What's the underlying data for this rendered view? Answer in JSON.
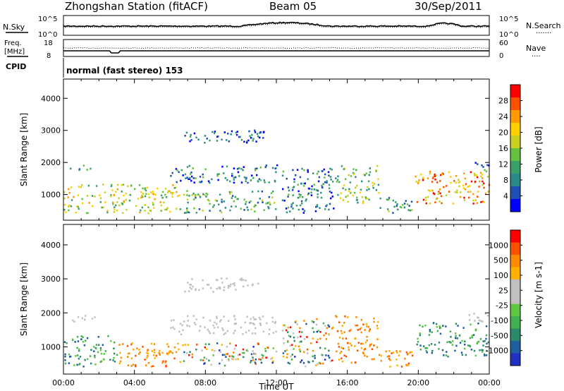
{
  "header": {
    "station": "Zhongshan Station (fitACF)",
    "beam": "Beam 05",
    "date": "30/Sep/2011"
  },
  "noise_panel": {
    "left_label": "N.Sky",
    "right_label": "N.Search",
    "left_ticks": [
      "10^5",
      "10^0"
    ],
    "right_ticks": [
      "10^5",
      "10^0"
    ],
    "legend_dots": "......."
  },
  "freq_panel": {
    "left_label_1": "Freq.",
    "left_label_2": "[MHz]",
    "left_ticks": [
      "18",
      "8"
    ],
    "right_label": "Nave",
    "right_ticks": [
      "60",
      "0"
    ],
    "legend_dots": "...."
  },
  "cpid": {
    "label": "CPID",
    "mode": "normal (fast stereo) 153"
  },
  "chart_data": [
    {
      "type": "heatmap",
      "name": "power",
      "ylabel": "Slant Range [km]",
      "yticks": [
        "4000",
        "3000",
        "2000",
        "1000"
      ],
      "ytick_values": [
        4000,
        3000,
        2000,
        1000
      ],
      "ylim": [
        200,
        4600
      ],
      "xlim": [
        0,
        24
      ],
      "colorbar_label": "Power [dB]",
      "colorbar_ticks": [
        "28",
        "24",
        "20",
        "16",
        "12",
        "8",
        "4"
      ],
      "colorbar_colors": [
        "#0000ff",
        "#1f4fb0",
        "#2a8a8a",
        "#3aa06a",
        "#66c040",
        "#c8d020",
        "#ffd000",
        "#ff9a00",
        "#ff5000",
        "#ff0000"
      ],
      "echo_regions": [
        {
          "t0": 0.0,
          "t1": 6.5,
          "r0": 400,
          "r1": 1300,
          "level": 0.55
        },
        {
          "t0": 0.3,
          "t1": 1.6,
          "r0": 1700,
          "r1": 1900,
          "level": 0.25
        },
        {
          "t0": 6.0,
          "t1": 12.0,
          "r0": 1350,
          "r1": 1900,
          "level": 0.18
        },
        {
          "t0": 6.8,
          "t1": 11.3,
          "r0": 2600,
          "r1": 3000,
          "level": 0.12
        },
        {
          "t0": 6.5,
          "t1": 12.0,
          "r0": 400,
          "r1": 1100,
          "level": 0.35
        },
        {
          "t0": 12.3,
          "t1": 15.2,
          "r0": 400,
          "r1": 1800,
          "level": 0.2
        },
        {
          "t0": 15.3,
          "t1": 17.8,
          "r0": 700,
          "r1": 1900,
          "level": 0.45
        },
        {
          "t0": 17.8,
          "t1": 19.7,
          "r0": 400,
          "r1": 900,
          "level": 0.3
        },
        {
          "t0": 19.8,
          "t1": 24.0,
          "r0": 700,
          "r1": 1700,
          "level": 0.75
        },
        {
          "t0": 22.8,
          "t1": 24.0,
          "r0": 1700,
          "r1": 2000,
          "level": 0.2
        }
      ]
    },
    {
      "type": "heatmap",
      "name": "velocity",
      "ylabel": "Slant Range [km]",
      "xlabel": "Time UT",
      "yticks": [
        "4000",
        "3000",
        "2000",
        "1000"
      ],
      "ytick_values": [
        4000,
        3000,
        2000,
        1000
      ],
      "ylim": [
        200,
        4600
      ],
      "xlim": [
        0,
        24
      ],
      "xticks": [
        "00:00",
        "04:00",
        "08:00",
        "12:00",
        "16:00",
        "20:00",
        "00:00"
      ],
      "xtick_values": [
        0,
        4,
        8,
        12,
        16,
        20,
        24
      ],
      "colorbar_label": "Velocity [m s-1]",
      "colorbar_ticks": [
        "1000",
        "500",
        "100",
        "25",
        "-25",
        "-100",
        "-500",
        "-1000"
      ],
      "colorbar_colors": [
        "#2030c0",
        "#1f5fa0",
        "#2a8a6a",
        "#40b050",
        "#60c840",
        "#c0c0c0",
        "#c0c0c0",
        "#ffb000",
        "#ff8a00",
        "#ff5000",
        "#ff0000"
      ],
      "echo_regions": [
        {
          "t0": 0.0,
          "t1": 3.0,
          "r0": 400,
          "r1": 1300,
          "level": "toward"
        },
        {
          "t0": 3.0,
          "t1": 6.5,
          "r0": 400,
          "r1": 1100,
          "level": "away"
        },
        {
          "t0": 0.3,
          "t1": 2.0,
          "r0": 1700,
          "r1": 1900,
          "level": "zero"
        },
        {
          "t0": 6.0,
          "t1": 12.0,
          "r0": 1350,
          "r1": 1900,
          "level": "zero"
        },
        {
          "t0": 6.8,
          "t1": 11.3,
          "r0": 2600,
          "r1": 3000,
          "level": "zero"
        },
        {
          "t0": 6.5,
          "t1": 12.0,
          "r0": 400,
          "r1": 1100,
          "level": "mixed"
        },
        {
          "t0": 12.3,
          "t1": 15.2,
          "r0": 400,
          "r1": 1800,
          "level": "mixed"
        },
        {
          "t0": 15.3,
          "t1": 17.8,
          "r0": 500,
          "r1": 1900,
          "level": "away"
        },
        {
          "t0": 17.8,
          "t1": 19.7,
          "r0": 400,
          "r1": 900,
          "level": "away"
        },
        {
          "t0": 19.8,
          "t1": 24.0,
          "r0": 700,
          "r1": 1700,
          "level": "toward"
        },
        {
          "t0": 22.8,
          "t1": 24.0,
          "r0": 1700,
          "r1": 2000,
          "level": "zero"
        }
      ]
    }
  ]
}
